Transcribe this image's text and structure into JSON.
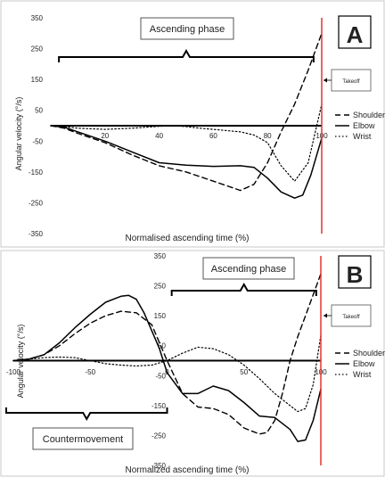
{
  "chart_data": [
    {
      "type": "line",
      "panel_label": "A",
      "xlabel": "Normalised ascending time (%)",
      "ylabel": "Angular velocity (°/s)",
      "xlim": [
        0,
        100
      ],
      "ylim": [
        -350,
        350
      ],
      "x_ticks": [
        "20",
        "40",
        "60",
        "80",
        "100"
      ],
      "y_ticks": [
        "350",
        "250",
        "150",
        "50",
        "-50",
        "-150",
        "-250",
        "-350"
      ],
      "grid": false,
      "legend_position": "right",
      "annotations": {
        "phase_label": "Ascending phase",
        "phase_range": [
          3,
          97
        ],
        "takeoff_label": "Takeoff",
        "takeoff_x": 100
      },
      "series": [
        {
          "name": "Shoulder",
          "style": "dashed",
          "x": [
            0,
            5,
            10,
            20,
            30,
            40,
            50,
            60,
            65,
            70,
            75,
            80,
            85,
            90,
            95,
            100
          ],
          "y": [
            0,
            -8,
            -25,
            -55,
            -95,
            -130,
            -150,
            -180,
            -195,
            -210,
            -190,
            -120,
            -20,
            70,
            180,
            300
          ]
        },
        {
          "name": "Elbow",
          "style": "solid",
          "x": [
            0,
            5,
            10,
            20,
            30,
            40,
            50,
            60,
            70,
            75,
            80,
            85,
            90,
            93,
            96,
            100
          ],
          "y": [
            0,
            -5,
            -20,
            -50,
            -85,
            -120,
            -128,
            -132,
            -130,
            -135,
            -170,
            -215,
            -235,
            -225,
            -160,
            -40
          ]
        },
        {
          "name": "Wrist",
          "style": "dotted",
          "x": [
            0,
            5,
            10,
            20,
            30,
            40,
            45,
            50,
            55,
            60,
            70,
            75,
            80,
            85,
            90,
            95,
            100
          ],
          "y": [
            0,
            -3,
            -8,
            -12,
            -8,
            -2,
            0,
            -3,
            -8,
            -12,
            -20,
            -30,
            -55,
            -130,
            -180,
            -120,
            70
          ]
        }
      ]
    },
    {
      "type": "line",
      "panel_label": "B",
      "xlabel": "Normalized ascending time (%)",
      "ylabel": "Angular velocity (°/s)",
      "xlim": [
        -100,
        100
      ],
      "ylim": [
        -350,
        350
      ],
      "x_ticks": [
        "-100",
        "-50",
        "0",
        "50",
        "100"
      ],
      "y_ticks": [
        "350",
        "250",
        "150",
        "50",
        "-50",
        "-150",
        "-250",
        "-350"
      ],
      "grid": false,
      "legend_position": "right",
      "annotations": {
        "phase_label": "Ascending phase",
        "phase_range": [
          3,
          97
        ],
        "takeoff_label": "Takeoff",
        "takeoff_x": 100,
        "countermovement_label": "Countermovement",
        "countermovement_range": [
          -100,
          0
        ]
      },
      "series": [
        {
          "name": "Shoulder",
          "style": "dashed",
          "x": [
            -100,
            -90,
            -80,
            -70,
            -60,
            -50,
            -40,
            -30,
            -20,
            -10,
            0,
            10,
            20,
            30,
            40,
            50,
            60,
            65,
            70,
            75,
            80,
            85,
            90,
            95,
            100
          ],
          "y": [
            0,
            5,
            20,
            50,
            90,
            125,
            150,
            165,
            160,
            120,
            0,
            -110,
            -155,
            -160,
            -180,
            -225,
            -245,
            -240,
            -200,
            -110,
            0,
            80,
            150,
            220,
            290
          ]
        },
        {
          "name": "Elbow",
          "style": "solid",
          "x": [
            -100,
            -90,
            -80,
            -70,
            -60,
            -50,
            -40,
            -30,
            -25,
            -20,
            -15,
            -10,
            -5,
            0,
            10,
            20,
            30,
            40,
            50,
            60,
            70,
            80,
            85,
            90,
            95,
            100
          ],
          "y": [
            0,
            5,
            20,
            60,
            110,
            155,
            195,
            215,
            218,
            205,
            160,
            100,
            40,
            -40,
            -110,
            -110,
            -85,
            -100,
            -140,
            -185,
            -190,
            -230,
            -270,
            -265,
            -200,
            -95
          ]
        },
        {
          "name": "Wrist",
          "style": "dotted",
          "x": [
            -100,
            -90,
            -80,
            -70,
            -60,
            -50,
            -40,
            -30,
            -20,
            -10,
            0,
            10,
            20,
            30,
            40,
            50,
            60,
            70,
            80,
            85,
            90,
            95,
            100
          ],
          "y": [
            0,
            5,
            10,
            12,
            10,
            0,
            -10,
            -15,
            -18,
            -15,
            0,
            25,
            45,
            40,
            20,
            -15,
            -60,
            -110,
            -150,
            -170,
            -160,
            -80,
            85
          ]
        }
      ]
    }
  ]
}
